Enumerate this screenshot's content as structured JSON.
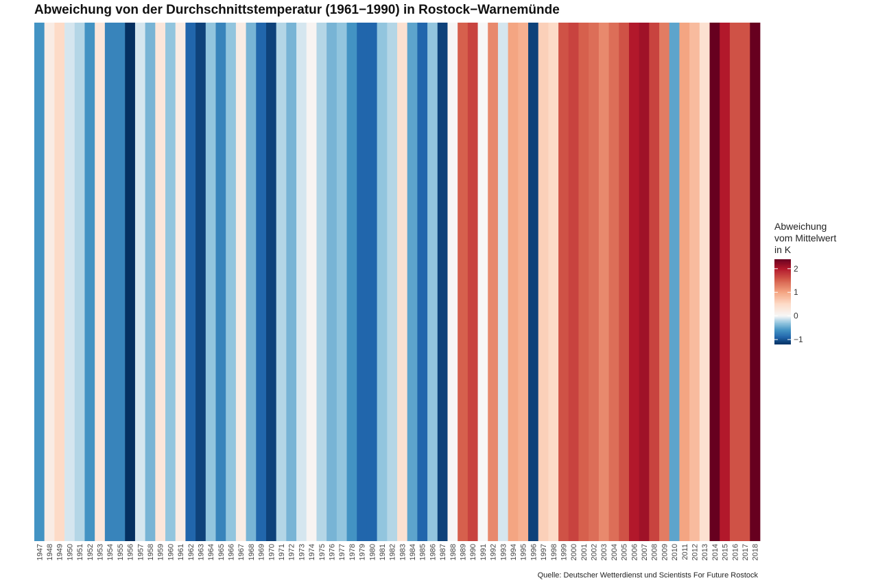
{
  "title": "Abweichung von der Durchschnittstemperatur (1961−1990) in Rostock−Warnemünde",
  "source": "Quelle: Deutscher Wetterdienst und Scientists For Future Rostock",
  "legend": {
    "title_lines": [
      "Abweichung",
      "vom Mittelwert",
      "in K"
    ],
    "ticks": [
      {
        "value": 2,
        "label": "2"
      },
      {
        "value": 1,
        "label": "1"
      },
      {
        "value": 0,
        "label": "0"
      },
      {
        "value": -1,
        "label": "−1"
      }
    ]
  },
  "chart_data": {
    "type": "heatmap",
    "title": "Abweichung von der Durchschnittstemperatur (1961−1990) in Rostock−Warnemünde",
    "colorscale": "RdBu (reversed): blue = negative, white = 0, red = positive",
    "color_range": [
      -1.2,
      2.4
    ],
    "legend_title": "Abweichung vom Mittelwert in K",
    "legend_placement": "right",
    "x": [
      "1947",
      "1948",
      "1949",
      "1950",
      "1951",
      "1952",
      "1953",
      "1954",
      "1955",
      "1956",
      "1957",
      "1958",
      "1959",
      "1960",
      "1961",
      "1962",
      "1963",
      "1964",
      "1965",
      "1966",
      "1967",
      "1968",
      "1969",
      "1970",
      "1971",
      "1972",
      "1973",
      "1974",
      "1975",
      "1976",
      "1977",
      "1978",
      "1979",
      "1980",
      "1981",
      "1982",
      "1983",
      "1984",
      "1985",
      "1986",
      "1987",
      "1988",
      "1989",
      "1990",
      "1991",
      "1992",
      "1993",
      "1994",
      "1995",
      "1996",
      "1997",
      "1998",
      "1999",
      "2000",
      "2001",
      "2002",
      "2003",
      "2004",
      "2005",
      "2006",
      "2007",
      "2008",
      "2009",
      "2010",
      "2011",
      "2012",
      "2013",
      "2014",
      "2015",
      "2016",
      "2017",
      "2018"
    ],
    "values": [
      -0.6,
      0.2,
      0.5,
      -0.1,
      -0.2,
      -0.6,
      0.3,
      -0.7,
      -0.7,
      -1.2,
      -0.1,
      -0.4,
      0.3,
      -0.3,
      0.2,
      -0.9,
      -1.1,
      -0.3,
      -0.7,
      -0.3,
      0.2,
      -0.4,
      -0.9,
      -1.1,
      -0.2,
      -0.4,
      -0.1,
      0.05,
      -0.2,
      -0.4,
      -0.3,
      -0.6,
      -0.9,
      -0.9,
      -0.3,
      -0.2,
      0.4,
      -0.5,
      -0.9,
      -0.3,
      -1.1,
      0.02,
      1.5,
      1.7,
      0.0,
      1.2,
      -0.1,
      1.0,
      0.9,
      -1.1,
      0.6,
      0.5,
      1.6,
      1.7,
      1.5,
      1.4,
      1.2,
      1.4,
      1.6,
      2.0,
      2.1,
      1.7,
      1.3,
      -0.5,
      1.0,
      0.8,
      0.4,
      2.4,
      2.0,
      1.6,
      1.6,
      2.4
    ]
  }
}
